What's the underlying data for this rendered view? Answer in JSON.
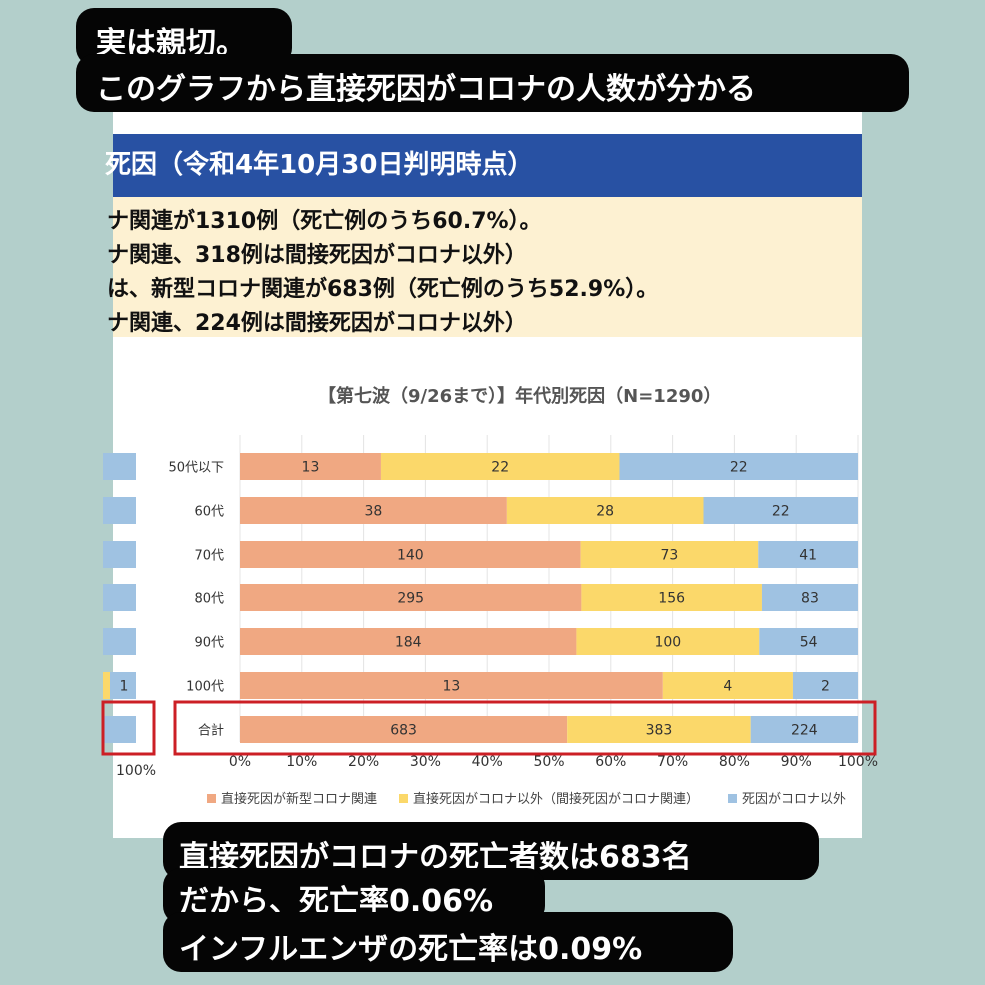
{
  "header": {
    "title": "死因（令和4年10月30日判明時点）",
    "lines": [
      "ナ関連が1310例（死亡例のうち60.7%）。",
      "ナ関連、318例は間接死因がコロナ以外）",
      "は、新型コロナ関連が683例（死亡例のうち52.9%）。",
      "ナ関連、224例は間接死因がコロナ以外）"
    ]
  },
  "top_callout": {
    "line1": "実は親切。",
    "line2": "このグラフから直接死因がコロナの人数が分かる"
  },
  "bottom_callout": {
    "line1": "直接死因がコロナの死亡者数は683名",
    "line2": "だから、死亡率0.06%",
    "line3": "インフルエンザの死亡率は0.09%"
  },
  "left_chart_fragment": {
    "bar_label": "1",
    "axis_label": "100%"
  },
  "colors": {
    "direct_covid": "#f0a882",
    "indirect_covid": "#fbd86a",
    "non_covid": "#9fc2e2",
    "highlight": "#cc1f25"
  },
  "chart_data": {
    "type": "bar",
    "orientation": "horizontal",
    "stacked": "percent",
    "title": "【第七波（9/26まで）】年代別死因（N=1290）",
    "categories": [
      "50代以下",
      "60代",
      "70代",
      "80代",
      "90代",
      "100代",
      "合計"
    ],
    "series": [
      {
        "name": "直接死因が新型コロナ関連",
        "values": [
          13,
          38,
          140,
          295,
          184,
          13,
          683
        ]
      },
      {
        "name": "直接死因がコロナ以外（間接死因がコロナ関連）",
        "values": [
          22,
          28,
          73,
          156,
          100,
          4,
          383
        ]
      },
      {
        "name": "死因がコロナ以外",
        "values": [
          22,
          22,
          41,
          83,
          54,
          2,
          224
        ]
      }
    ],
    "x_ticks": [
      "0%",
      "10%",
      "20%",
      "30%",
      "40%",
      "50%",
      "60%",
      "70%",
      "80%",
      "90%",
      "100%"
    ],
    "xlim": [
      0,
      100
    ],
    "highlighted_category": "合計",
    "legend_position": "bottom"
  }
}
